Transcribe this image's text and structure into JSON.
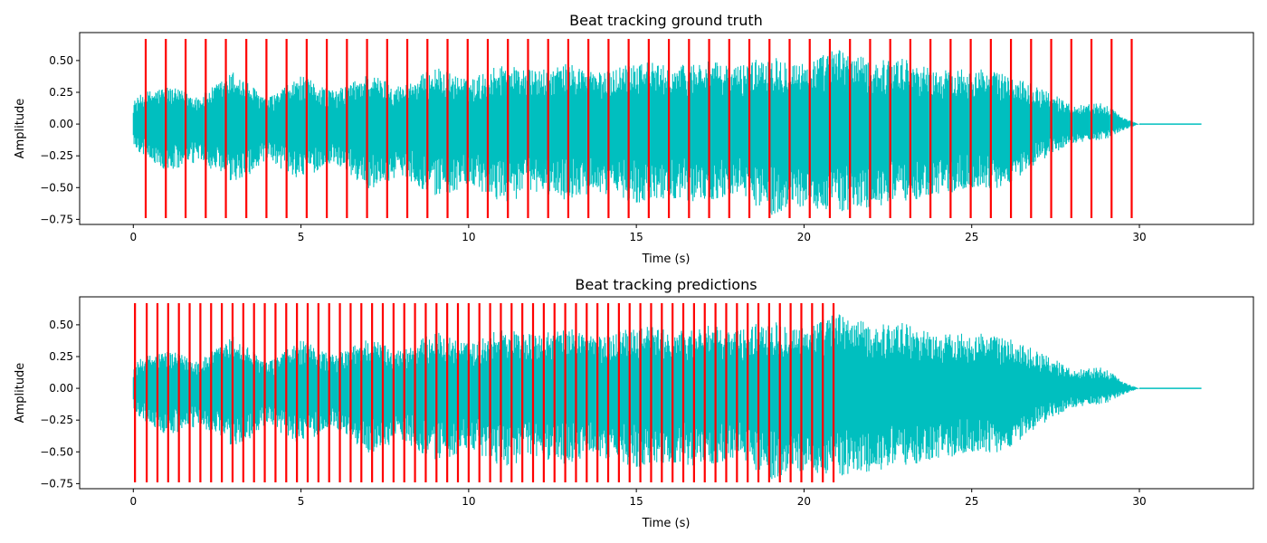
{
  "chart_data": [
    {
      "type": "line",
      "title": "Beat tracking ground truth",
      "xlabel": "Time (s)",
      "ylabel": "Amplitude",
      "xlim": [
        -1.6,
        33.4
      ],
      "ylim": [
        -0.79,
        0.72
      ],
      "xticks": [
        0,
        5,
        10,
        15,
        20,
        25,
        30
      ],
      "xtick_labels": [
        "0",
        "5",
        "10",
        "15",
        "20",
        "25",
        "30"
      ],
      "yticks": [
        -0.75,
        -0.5,
        -0.25,
        0.0,
        0.25,
        0.5
      ],
      "ytick_labels": [
        "−0.75",
        "−0.50",
        "−0.25",
        "0.00",
        "0.25",
        "0.50"
      ],
      "grid": false,
      "waveform": {
        "color": "#00bfbf",
        "duration": 30.0,
        "end": 31.85,
        "envelope": {
          "t": [
            0,
            0.3,
            1,
            2,
            3,
            4,
            5,
            6,
            7,
            8,
            9,
            10,
            11,
            12,
            13,
            14,
            15,
            16,
            17,
            18,
            19,
            20,
            21,
            22,
            23,
            24,
            25,
            26,
            27,
            28,
            29,
            29.5,
            30
          ],
          "top": [
            0.18,
            0.25,
            0.3,
            0.22,
            0.42,
            0.2,
            0.38,
            0.26,
            0.4,
            0.3,
            0.45,
            0.35,
            0.48,
            0.42,
            0.48,
            0.4,
            0.52,
            0.45,
            0.5,
            0.46,
            0.55,
            0.48,
            0.6,
            0.5,
            0.52,
            0.42,
            0.45,
            0.4,
            0.3,
            0.15,
            0.17,
            0.05,
            0.0
          ],
          "bottom": [
            -0.18,
            -0.25,
            -0.38,
            -0.3,
            -0.48,
            -0.3,
            -0.44,
            -0.3,
            -0.52,
            -0.4,
            -0.58,
            -0.5,
            -0.62,
            -0.55,
            -0.6,
            -0.55,
            -0.62,
            -0.58,
            -0.62,
            -0.55,
            -0.72,
            -0.65,
            -0.7,
            -0.66,
            -0.62,
            -0.55,
            -0.52,
            -0.5,
            -0.3,
            -0.15,
            -0.12,
            -0.05,
            0.0
          ]
        }
      },
      "beats": {
        "color": "#ff0000",
        "ymin": -0.74,
        "ymax": 0.67,
        "times": [
          0.37,
          0.97,
          1.56,
          2.16,
          2.76,
          3.37,
          3.97,
          4.57,
          5.17,
          5.77,
          6.37,
          6.97,
          7.57,
          8.17,
          8.77,
          9.37,
          9.97,
          10.57,
          11.17,
          11.77,
          12.37,
          12.97,
          13.57,
          14.17,
          14.77,
          15.37,
          15.97,
          16.57,
          17.17,
          17.77,
          18.37,
          18.97,
          19.57,
          20.17,
          20.77,
          21.37,
          21.97,
          22.57,
          23.17,
          23.77,
          24.37,
          24.97,
          25.57,
          26.17,
          26.77,
          27.37,
          27.97,
          28.57,
          29.17,
          29.77
        ]
      }
    },
    {
      "type": "line",
      "title": "Beat tracking predictions",
      "xlabel": "Time (s)",
      "ylabel": "Amplitude",
      "xlim": [
        -1.6,
        33.4
      ],
      "ylim": [
        -0.79,
        0.72
      ],
      "xticks": [
        0,
        5,
        10,
        15,
        20,
        25,
        30
      ],
      "xtick_labels": [
        "0",
        "5",
        "10",
        "15",
        "20",
        "25",
        "30"
      ],
      "yticks": [
        -0.75,
        -0.5,
        -0.25,
        0.0,
        0.25,
        0.5
      ],
      "ytick_labels": [
        "−0.75",
        "−0.50",
        "−0.25",
        "0.00",
        "0.25",
        "0.50"
      ],
      "grid": false,
      "waveform": {
        "color": "#00bfbf",
        "duration": 30.0,
        "end": 31.85,
        "envelope": {
          "t": [
            0,
            0.3,
            1,
            2,
            3,
            4,
            5,
            6,
            7,
            8,
            9,
            10,
            11,
            12,
            13,
            14,
            15,
            16,
            17,
            18,
            19,
            20,
            21,
            22,
            23,
            24,
            25,
            26,
            27,
            28,
            29,
            29.5,
            30
          ],
          "top": [
            0.18,
            0.25,
            0.3,
            0.22,
            0.42,
            0.2,
            0.38,
            0.26,
            0.4,
            0.3,
            0.45,
            0.35,
            0.48,
            0.42,
            0.48,
            0.4,
            0.52,
            0.45,
            0.5,
            0.46,
            0.55,
            0.48,
            0.6,
            0.5,
            0.52,
            0.42,
            0.45,
            0.4,
            0.3,
            0.15,
            0.17,
            0.05,
            0.0
          ],
          "bottom": [
            -0.18,
            -0.25,
            -0.38,
            -0.3,
            -0.48,
            -0.3,
            -0.44,
            -0.3,
            -0.52,
            -0.4,
            -0.58,
            -0.5,
            -0.62,
            -0.55,
            -0.6,
            -0.55,
            -0.62,
            -0.58,
            -0.62,
            -0.55,
            -0.72,
            -0.65,
            -0.7,
            -0.66,
            -0.62,
            -0.55,
            -0.52,
            -0.5,
            -0.3,
            -0.15,
            -0.12,
            -0.05,
            0.0
          ]
        }
      },
      "beats": {
        "color": "#ff0000",
        "ymin": -0.74,
        "ymax": 0.67,
        "times": [
          0.05,
          0.4,
          0.72,
          1.04,
          1.36,
          1.68,
          2.0,
          2.32,
          2.64,
          2.96,
          3.28,
          3.6,
          3.92,
          4.24,
          4.56,
          4.88,
          5.2,
          5.52,
          5.84,
          6.16,
          6.48,
          6.8,
          7.12,
          7.44,
          7.76,
          8.08,
          8.4,
          8.72,
          9.04,
          9.36,
          9.68,
          10.0,
          10.32,
          10.64,
          10.96,
          11.28,
          11.6,
          11.92,
          12.24,
          12.56,
          12.88,
          13.2,
          13.52,
          13.84,
          14.16,
          14.48,
          14.8,
          15.12,
          15.44,
          15.76,
          16.08,
          16.4,
          16.72,
          17.04,
          17.36,
          17.68,
          18.0,
          18.32,
          18.64,
          18.96,
          19.28,
          19.6,
          19.92,
          20.24,
          20.56,
          20.88
        ]
      }
    }
  ]
}
